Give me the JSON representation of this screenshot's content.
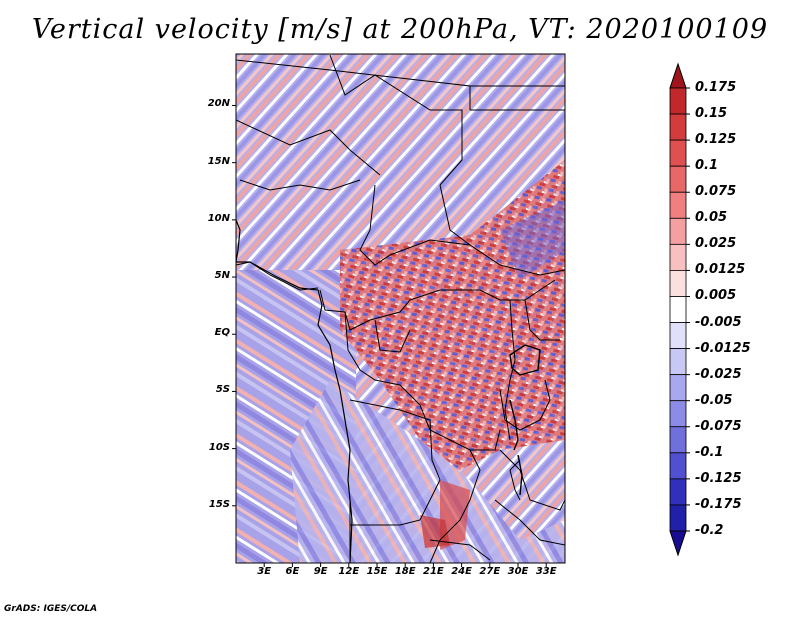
{
  "title": "Vertical velocity [m/s] at 200hPa, VT: 2020100109",
  "credit": "GrADS: IGES/COLA",
  "map": {
    "variable": "vertical velocity",
    "level": "200hPa",
    "lat_labels": [
      "20N",
      "15N",
      "10N",
      "5N",
      "EQ",
      "5S",
      "10S",
      "15S"
    ],
    "lat_values": [
      20,
      15,
      10,
      5,
      0,
      -5,
      -10,
      -15
    ],
    "lon_labels": [
      "3E",
      "6E",
      "9E",
      "12E",
      "15E",
      "18E",
      "21E",
      "24E",
      "27E",
      "30E",
      "33E"
    ],
    "lon_values": [
      3,
      6,
      9,
      12,
      15,
      18,
      21,
      24,
      27,
      30,
      33
    ],
    "lat_range": [
      -20,
      24.5
    ],
    "lon_range": [
      0,
      35
    ]
  },
  "colorbar": {
    "labels": [
      "0.175",
      "0.15",
      "0.125",
      "0.1",
      "0.075",
      "0.05",
      "0.025",
      "0.0125",
      "0.005",
      "-0.005",
      "-0.0125",
      "-0.025",
      "-0.05",
      "-0.075",
      "-0.1",
      "-0.125",
      "-0.175",
      "-0.2"
    ],
    "colors": [
      "#a0141c",
      "#c0282c",
      "#d23c3c",
      "#e05050",
      "#e86868",
      "#f08080",
      "#f4a0a0",
      "#f8c0c0",
      "#fce0e0",
      "#ffffff",
      "#e0e0f8",
      "#c8c8f4",
      "#a8a8ee",
      "#8c8ce8",
      "#7070dc",
      "#5050d0",
      "#3030bc",
      "#2020a8",
      "#180c90"
    ]
  }
}
